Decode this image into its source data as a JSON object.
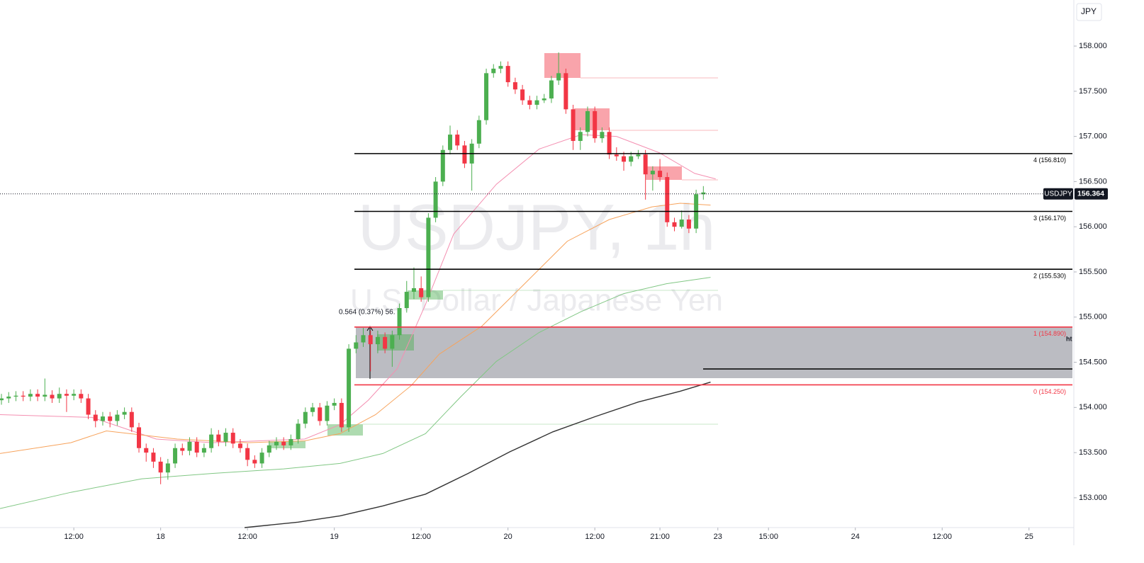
{
  "chart_data": {
    "type": "candlestick",
    "title": "USDJPY, 1h",
    "subtitle": "U.S. Dollar / Japanese Yen",
    "currency": "JPY",
    "symbol": "USDJPY",
    "last_price": 156.364,
    "up_color": "#4caf50",
    "down_color": "#f23645",
    "xlim": [
      1.8,
      150.0
    ],
    "ylim": [
      152.67,
      158.51
    ],
    "xticks": [
      {
        "value": 12,
        "label": "12:00"
      },
      {
        "value": 24,
        "label": "18"
      },
      {
        "value": 36,
        "label": "12:00"
      },
      {
        "value": 48,
        "label": "19"
      },
      {
        "value": 60,
        "label": "12:00"
      },
      {
        "value": 72,
        "label": "20"
      },
      {
        "value": 84,
        "label": "12:00"
      },
      {
        "value": 93,
        "label": "21:00"
      },
      {
        "value": 101,
        "label": "23"
      },
      {
        "value": 108,
        "label": "15:00"
      },
      {
        "value": 120,
        "label": "24"
      },
      {
        "value": 132,
        "label": "12:00"
      },
      {
        "value": 144,
        "label": "25"
      }
    ],
    "yticks": [
      {
        "value": 153,
        "label": "153.000"
      },
      {
        "value": 153.5,
        "label": "153.500"
      },
      {
        "value": 154,
        "label": "154.000"
      },
      {
        "value": 154.5,
        "label": "154.500"
      },
      {
        "value": 155,
        "label": "155.000"
      },
      {
        "value": 155.5,
        "label": "155.500"
      },
      {
        "value": 156,
        "label": "156.000"
      },
      {
        "value": 156.5,
        "label": "156.500"
      },
      {
        "value": 157,
        "label": "157.000"
      },
      {
        "value": 157.5,
        "label": "157.500"
      },
      {
        "value": 158,
        "label": "158.000"
      }
    ],
    "candles": {
      "x": [
        2,
        3,
        4,
        5,
        6,
        7,
        8,
        9,
        10,
        11,
        12,
        13,
        14,
        15,
        16,
        17,
        18,
        19,
        20,
        21,
        22,
        23,
        24,
        25,
        26,
        27,
        28,
        29,
        30,
        31,
        32,
        33,
        34,
        35,
        36,
        37,
        38,
        39,
        40,
        41,
        42,
        43,
        44,
        45,
        46,
        47,
        48,
        49,
        50,
        51,
        52,
        53,
        54,
        55,
        56,
        57,
        58,
        59,
        60,
        61,
        62,
        63,
        64,
        65,
        66,
        67,
        68,
        69,
        70,
        71,
        72,
        73,
        74,
        75,
        76,
        77,
        78,
        79,
        80,
        81,
        82,
        83,
        84,
        85,
        86,
        87,
        88,
        89,
        90,
        91,
        92,
        93,
        94,
        95,
        96,
        97,
        98,
        99
      ],
      "open": [
        154.08,
        154.1,
        154.12,
        154.13,
        154.12,
        154.15,
        154.12,
        154.14,
        154.1,
        154.15,
        154.13,
        154.15,
        154.1,
        153.92,
        153.85,
        153.9,
        153.85,
        153.92,
        153.95,
        153.78,
        153.55,
        153.5,
        153.4,
        153.28,
        153.38,
        153.55,
        153.52,
        153.62,
        153.5,
        153.55,
        153.7,
        153.62,
        153.72,
        153.6,
        153.55,
        153.42,
        153.38,
        153.5,
        153.58,
        153.62,
        153.58,
        153.65,
        153.82,
        153.95,
        154.0,
        153.85,
        154.02,
        154.05,
        153.78,
        154.65,
        154.72,
        154.8,
        154.7,
        154.78,
        154.65,
        154.8,
        155.1,
        155.28,
        155.32,
        155.22,
        156.1,
        156.5,
        156.85,
        157.02,
        156.9,
        156.7,
        156.92,
        157.18,
        157.7,
        157.75,
        157.78,
        157.6,
        157.52,
        157.4,
        157.35,
        157.4,
        157.42,
        157.62,
        157.7,
        157.3,
        156.95,
        157.05,
        157.28,
        156.98,
        157.05,
        156.8,
        156.78,
        156.72,
        156.78,
        156.8,
        156.58,
        156.62,
        156.55,
        156.05,
        156.0,
        156.08,
        155.98,
        156.36
      ],
      "high": [
        154.15,
        154.17,
        154.18,
        154.18,
        154.2,
        154.2,
        154.32,
        154.19,
        154.22,
        154.2,
        154.2,
        154.2,
        154.15,
        153.97,
        153.95,
        153.95,
        153.97,
        154.0,
        154.0,
        153.83,
        153.6,
        153.55,
        153.45,
        153.43,
        153.6,
        153.6,
        153.67,
        153.67,
        153.6,
        153.77,
        153.75,
        153.77,
        153.77,
        153.65,
        153.6,
        153.47,
        153.55,
        153.63,
        153.67,
        153.67,
        153.7,
        153.87,
        154.0,
        154.05,
        154.05,
        154.07,
        154.1,
        154.1,
        154.7,
        154.8,
        154.88,
        154.85,
        154.85,
        154.83,
        154.85,
        155.15,
        155.4,
        155.55,
        155.45,
        156.15,
        156.55,
        156.9,
        157.12,
        157.07,
        156.95,
        156.97,
        157.23,
        157.75,
        157.8,
        157.83,
        157.83,
        157.65,
        157.57,
        157.45,
        157.45,
        157.47,
        157.67,
        157.93,
        157.75,
        157.35,
        157.1,
        157.33,
        157.33,
        157.1,
        157.1,
        156.88,
        156.83,
        156.83,
        156.85,
        156.85,
        156.67,
        156.75,
        156.6,
        156.1,
        156.18,
        156.13,
        156.41,
        156.45
      ],
      "low": [
        154.03,
        154.05,
        154.07,
        154.07,
        154.07,
        154.07,
        154.07,
        154.05,
        154.05,
        153.95,
        154.08,
        154.05,
        153.87,
        153.78,
        153.8,
        153.78,
        153.8,
        153.87,
        153.73,
        153.5,
        153.4,
        153.33,
        153.15,
        153.2,
        153.33,
        153.47,
        153.47,
        153.45,
        153.45,
        153.5,
        153.57,
        153.57,
        153.55,
        153.5,
        153.35,
        153.33,
        153.33,
        153.45,
        153.53,
        153.53,
        153.53,
        153.6,
        153.77,
        153.9,
        153.8,
        153.8,
        153.97,
        153.73,
        153.73,
        154.6,
        154.67,
        154.4,
        154.6,
        154.6,
        154.45,
        154.75,
        155.05,
        155.2,
        155.17,
        155.17,
        156.05,
        156.45,
        156.8,
        156.85,
        156.65,
        156.4,
        156.87,
        157.13,
        157.65,
        157.7,
        157.55,
        157.47,
        157.35,
        157.3,
        157.3,
        157.37,
        157.37,
        157.57,
        157.25,
        156.85,
        156.85,
        157.0,
        156.93,
        156.93,
        156.75,
        156.73,
        156.62,
        156.67,
        156.75,
        156.3,
        156.4,
        156.5,
        156.0,
        155.95,
        155.98,
        155.93,
        155.93,
        156.3
      ],
      "close": [
        154.1,
        154.12,
        154.13,
        154.12,
        154.15,
        154.12,
        154.14,
        154.1,
        154.15,
        154.13,
        154.15,
        154.1,
        153.92,
        153.85,
        153.9,
        153.85,
        153.92,
        153.95,
        153.78,
        153.55,
        153.5,
        153.4,
        153.28,
        153.38,
        153.55,
        153.52,
        153.62,
        153.5,
        153.55,
        153.7,
        153.62,
        153.72,
        153.6,
        153.55,
        153.42,
        153.38,
        153.5,
        153.58,
        153.62,
        153.58,
        153.65,
        153.82,
        153.95,
        154.0,
        153.85,
        154.02,
        154.05,
        153.78,
        154.65,
        154.72,
        154.8,
        154.7,
        154.78,
        154.65,
        154.8,
        155.1,
        155.28,
        155.32,
        155.22,
        156.1,
        156.5,
        156.85,
        157.02,
        156.9,
        156.7,
        156.92,
        157.18,
        157.7,
        157.75,
        157.78,
        157.6,
        157.52,
        157.4,
        157.35,
        157.4,
        157.42,
        157.62,
        157.7,
        157.3,
        156.95,
        157.05,
        157.28,
        156.98,
        157.05,
        156.8,
        156.78,
        156.72,
        156.78,
        156.8,
        156.58,
        156.62,
        156.55,
        156.05,
        156.0,
        156.08,
        155.98,
        156.36,
        156.38
      ]
    },
    "series": [
      {
        "color": "#f48fb1",
        "x": [
          1.8,
          14.5,
          23.4,
          31.2,
          43.9,
          48.8,
          52.7,
          56.7,
          60.6,
          64.5,
          70.4,
          76.3,
          82.1,
          87.0,
          92.9,
          97.8,
          100.7
        ],
        "values": [
          153.92,
          153.89,
          153.65,
          153.61,
          153.65,
          153.81,
          154.08,
          154.43,
          155.14,
          155.92,
          156.47,
          156.86,
          157.02,
          157.0,
          156.82,
          156.59,
          156.53
        ]
      },
      {
        "color": "#f7a35c",
        "x": [
          1.8,
          11.6,
          16.5,
          26.3,
          36.1,
          43.9,
          48.8,
          53.7,
          58.6,
          62.5,
          68.4,
          74.3,
          80.2,
          86.0,
          91.9,
          95.8,
          100.0
        ],
        "values": [
          153.49,
          153.61,
          153.74,
          153.65,
          153.61,
          153.63,
          153.71,
          153.92,
          154.24,
          154.59,
          154.9,
          155.37,
          155.84,
          156.08,
          156.22,
          156.26,
          156.24
        ]
      },
      {
        "color": "#81c784",
        "x": [
          1.8,
          11.6,
          21.4,
          31.2,
          41.0,
          48.8,
          54.7,
          60.6,
          65.5,
          70.4,
          76.3,
          82.1,
          88.0,
          93.9,
          100.0
        ],
        "values": [
          152.88,
          153.06,
          153.21,
          153.27,
          153.32,
          153.38,
          153.49,
          153.71,
          154.12,
          154.51,
          154.83,
          155.06,
          155.26,
          155.37,
          155.44
        ]
      },
      {
        "color": "#333333",
        "x": [
          35.6,
          43.0,
          48.8,
          54.7,
          60.6,
          66.5,
          72.3,
          78.2,
          84.1,
          90.0,
          95.8,
          100.0
        ],
        "values": [
          152.67,
          152.73,
          152.8,
          152.91,
          153.04,
          153.27,
          153.51,
          153.73,
          153.9,
          154.06,
          154.18,
          154.28
        ]
      }
    ],
    "levels": [
      {
        "value": 156.81,
        "label": "4 (156.810)",
        "color": "#000000"
      },
      {
        "value": 156.17,
        "label": "3 (156.170)",
        "color": "#000000"
      },
      {
        "value": 155.53,
        "label": "2 (155.530)",
        "color": "#000000"
      },
      {
        "value": 154.89,
        "label": "1 (154.890)",
        "color": "#f23645"
      },
      {
        "value": 154.25,
        "label": "0 (154.250)",
        "color": "#f23645"
      }
    ],
    "annotations": [
      "0.564 (0.37%) 56.",
      "ht"
    ]
  }
}
